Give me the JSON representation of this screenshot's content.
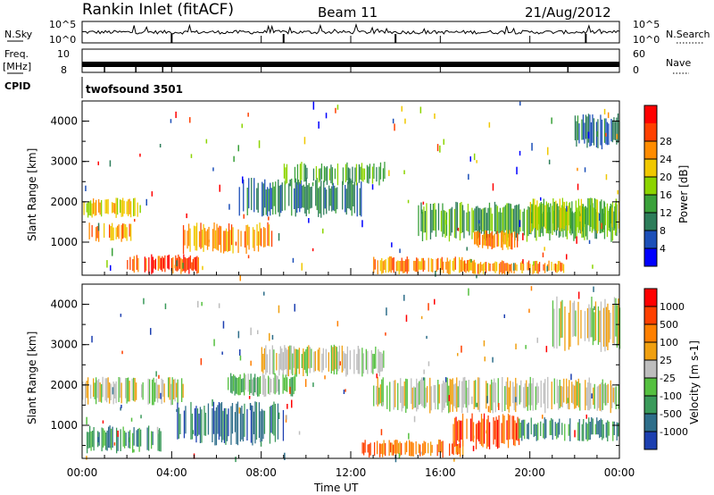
{
  "header": {
    "station": "Rankin Inlet (fitACF)",
    "beam": "Beam 11",
    "date": "21/Aug/2012"
  },
  "noise_panel": {
    "left_label": "N.Sky",
    "left_ticks": [
      "10^5",
      "10^0"
    ],
    "right_ticks": [
      "10^5",
      "10^0"
    ],
    "right_label": "N.Search"
  },
  "freq_panel": {
    "left_label_1": "Freq.",
    "left_label_2": "[MHz]",
    "left_ticks": [
      "10",
      "8"
    ],
    "right_ticks": [
      "60",
      "0"
    ],
    "right_label": "Nave"
  },
  "cpid_panel": {
    "left_label": "CPID",
    "program": "twofsound 3501"
  },
  "chart_data": [
    {
      "type": "heatmap",
      "quantity": "Power",
      "ylabel": "Slant Range [km]",
      "yticks": [
        1000,
        2000,
        3000,
        4000
      ],
      "ylim": [
        180,
        4500
      ],
      "xlim_hours": [
        0,
        24
      ],
      "colorbar_label": "Power [dB]",
      "colorbar_ticks": [
        "4",
        "8",
        "12",
        "16",
        "20",
        "24",
        "28"
      ],
      "colorbar_colors": [
        "#0000ff",
        "#1c4fb8",
        "#2d7d5a",
        "#3aa13a",
        "#8cd400",
        "#f0c800",
        "#ff8c00",
        "#ff4000",
        "#ff0000"
      ],
      "regions": [
        {
          "t0": 0.0,
          "t1": 2.5,
          "r0": 1600,
          "r1": 2100,
          "level": 5
        },
        {
          "t0": 0.3,
          "t1": 2.2,
          "r0": 1000,
          "r1": 1500,
          "level": 6
        },
        {
          "t0": 2.0,
          "t1": 5.2,
          "r0": 200,
          "r1": 700,
          "level": 7
        },
        {
          "t0": 4.5,
          "t1": 8.5,
          "r0": 700,
          "r1": 1500,
          "level": 6
        },
        {
          "t0": 7.0,
          "t1": 12.5,
          "r0": 1600,
          "r1": 2600,
          "level": 2
        },
        {
          "t0": 9.0,
          "t1": 13.5,
          "r0": 2400,
          "r1": 3000,
          "level": 3
        },
        {
          "t0": 13.0,
          "t1": 17.5,
          "r0": 200,
          "r1": 650,
          "level": 6
        },
        {
          "t0": 17.0,
          "t1": 21.5,
          "r0": 200,
          "r1": 550,
          "level": 6
        },
        {
          "t0": 15.0,
          "t1": 24.0,
          "r0": 1000,
          "r1": 2000,
          "level": 3
        },
        {
          "t0": 17.5,
          "t1": 19.5,
          "r0": 800,
          "r1": 1300,
          "level": 6
        },
        {
          "t0": 20.0,
          "t1": 24.0,
          "r0": 1200,
          "r1": 2100,
          "level": 4
        },
        {
          "t0": 22.0,
          "t1": 24.0,
          "r0": 3300,
          "r1": 4200,
          "level": 2
        }
      ]
    },
    {
      "type": "heatmap",
      "quantity": "Velocity",
      "ylabel": "Slant Range [km]",
      "yticks": [
        1000,
        2000,
        3000,
        4000
      ],
      "ylim": [
        180,
        4500
      ],
      "xlim_hours": [
        0,
        24
      ],
      "colorbar_label": "Velocity [m s-1]",
      "colorbar_ticks": [
        "1000",
        "500",
        "100",
        "25",
        "-25",
        "-100",
        "-500",
        "-1000"
      ],
      "colorbar_colors": [
        "#1c3fb0",
        "#2e6e8a",
        "#3a9a5a",
        "#55c040",
        "#bdbdbd",
        "#f0a010",
        "#ff8000",
        "#ff4000",
        "#ff0000"
      ],
      "regions": [
        {
          "t0": 0.0,
          "t1": 4.5,
          "r0": 1500,
          "r1": 2200,
          "level": 4
        },
        {
          "t0": 0.2,
          "t1": 3.5,
          "r0": 300,
          "r1": 1000,
          "level": 2
        },
        {
          "t0": 4.0,
          "t1": 9.0,
          "r0": 500,
          "r1": 1600,
          "level": 1
        },
        {
          "t0": 6.5,
          "t1": 9.5,
          "r0": 1700,
          "r1": 2300,
          "level": 3
        },
        {
          "t0": 8.0,
          "t1": 13.5,
          "r0": 2200,
          "r1": 3000,
          "level": 4
        },
        {
          "t0": 12.5,
          "t1": 17.0,
          "r0": 200,
          "r1": 650,
          "level": 6
        },
        {
          "t0": 16.5,
          "t1": 19.5,
          "r0": 400,
          "r1": 1300,
          "level": 7
        },
        {
          "t0": 13.0,
          "t1": 24.0,
          "r0": 1300,
          "r1": 2200,
          "level": 4
        },
        {
          "t0": 19.5,
          "t1": 24.0,
          "r0": 600,
          "r1": 1200,
          "level": 2
        },
        {
          "t0": 21.0,
          "t1": 24.0,
          "r0": 2800,
          "r1": 4200,
          "level": 4
        }
      ]
    }
  ],
  "x_axis": {
    "tick_labels": [
      "00:00",
      "04:00",
      "08:00",
      "12:00",
      "16:00",
      "20:00",
      "00:00"
    ],
    "label": "Time UT"
  }
}
